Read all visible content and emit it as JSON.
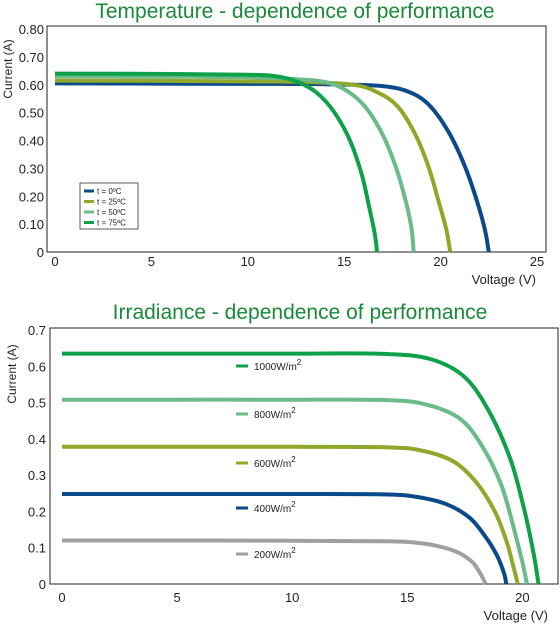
{
  "chart_data": [
    {
      "type": "line",
      "title": "Temperature - dependence of performance",
      "xlabel": "Voltage (V)",
      "ylabel": "Current (A)",
      "xlim": [
        0,
        25
      ],
      "ylim": [
        0,
        0.8
      ],
      "x_ticks": [
        "0",
        "5",
        "10",
        "15",
        "20",
        "25"
      ],
      "y_ticks": [
        "0",
        "0.10",
        "0.20",
        "0.30",
        "0.40",
        "0.50",
        "0.60",
        "0.70",
        "0.80"
      ],
      "legend_position": "bottom-left",
      "series": [
        {
          "name": "t = 0ºC",
          "color": "#0a4a8a",
          "isc": 0.605,
          "voc": 22.5,
          "knee": 0.82,
          "points": [
            [
              0,
              0.605
            ],
            [
              5,
              0.604
            ],
            [
              10,
              0.603
            ],
            [
              14,
              0.602
            ],
            [
              17,
              0.595
            ],
            [
              18.5,
              0.57
            ],
            [
              19.5,
              0.52
            ],
            [
              20.5,
              0.42
            ],
            [
              21.3,
              0.3
            ],
            [
              21.9,
              0.18
            ],
            [
              22.3,
              0.08
            ],
            [
              22.5,
              0
            ]
          ]
        },
        {
          "name": "t = 25ºC",
          "color": "#8fa82a",
          "isc": 0.615,
          "voc": 20.5,
          "knee": 0.82,
          "points": [
            [
              0,
              0.615
            ],
            [
              5,
              0.614
            ],
            [
              10,
              0.612
            ],
            [
              13,
              0.61
            ],
            [
              15.5,
              0.6
            ],
            [
              16.8,
              0.57
            ],
            [
              17.8,
              0.52
            ],
            [
              18.7,
              0.42
            ],
            [
              19.4,
              0.3
            ],
            [
              19.9,
              0.18
            ],
            [
              20.3,
              0.08
            ],
            [
              20.5,
              0
            ]
          ]
        },
        {
          "name": "t = 50ºC",
          "color": "#6aba8a",
          "isc": 0.63,
          "voc": 18.6,
          "knee": 0.82,
          "points": [
            [
              0,
              0.63
            ],
            [
              5,
              0.629
            ],
            [
              10,
              0.627
            ],
            [
              12.5,
              0.62
            ],
            [
              14,
              0.61
            ],
            [
              15.1,
              0.58
            ],
            [
              16.1,
              0.52
            ],
            [
              17,
              0.42
            ],
            [
              17.7,
              0.3
            ],
            [
              18.2,
              0.18
            ],
            [
              18.5,
              0.08
            ],
            [
              18.6,
              0
            ]
          ]
        },
        {
          "name": "t = 75ºC",
          "color": "#0fa04a",
          "isc": 0.64,
          "voc": 16.7,
          "knee": 0.82,
          "points": [
            [
              0,
              0.64
            ],
            [
              5,
              0.639
            ],
            [
              10,
              0.636
            ],
            [
              11.5,
              0.63
            ],
            [
              12.6,
              0.61
            ],
            [
              13.6,
              0.57
            ],
            [
              14.5,
              0.5
            ],
            [
              15.3,
              0.4
            ],
            [
              15.9,
              0.28
            ],
            [
              16.3,
              0.16
            ],
            [
              16.6,
              0.06
            ],
            [
              16.7,
              0
            ]
          ]
        }
      ]
    },
    {
      "type": "line",
      "title": "Irradiance - dependence of performance",
      "xlabel": "Voltage (V)",
      "ylabel": "Current (A)",
      "xlim": [
        0,
        21.2
      ],
      "ylim": [
        0,
        0.7
      ],
      "x_ticks": [
        "0",
        "5",
        "10",
        "15",
        "20"
      ],
      "y_ticks": [
        "0",
        "0.1",
        "0.2",
        "0.3",
        "0.4",
        "0.5",
        "0.6",
        "0.7"
      ],
      "legend_position": "inline-center",
      "series": [
        {
          "name": "1000W/m",
          "sup": "2",
          "color": "#0fa04a",
          "isc": 0.635,
          "voc": 20.7,
          "knee": 0.78,
          "points": [
            [
              0,
              0.635
            ],
            [
              5,
              0.635
            ],
            [
              10,
              0.635
            ],
            [
              14,
              0.634
            ],
            [
              16,
              0.62
            ],
            [
              17.5,
              0.57
            ],
            [
              18.6,
              0.47
            ],
            [
              19.5,
              0.34
            ],
            [
              20.1,
              0.2
            ],
            [
              20.5,
              0.08
            ],
            [
              20.7,
              0
            ]
          ]
        },
        {
          "name": "800W/m",
          "sup": "2",
          "color": "#6aba8a",
          "isc": 0.508,
          "voc": 20.2,
          "knee": 0.78,
          "points": [
            [
              0,
              0.508
            ],
            [
              5,
              0.508
            ],
            [
              10,
              0.508
            ],
            [
              14,
              0.507
            ],
            [
              15.8,
              0.495
            ],
            [
              17.3,
              0.455
            ],
            [
              18.3,
              0.375
            ],
            [
              19.1,
              0.27
            ],
            [
              19.6,
              0.16
            ],
            [
              20,
              0.06
            ],
            [
              20.2,
              0
            ]
          ]
        },
        {
          "name": "600W/m",
          "sup": "2",
          "color": "#8fa82a",
          "isc": 0.378,
          "voc": 19.8,
          "knee": 0.78,
          "points": [
            [
              0,
              0.378
            ],
            [
              5,
              0.378
            ],
            [
              10,
              0.378
            ],
            [
              14,
              0.377
            ],
            [
              15.6,
              0.368
            ],
            [
              17,
              0.338
            ],
            [
              18,
              0.28
            ],
            [
              18.8,
              0.2
            ],
            [
              19.3,
              0.12
            ],
            [
              19.6,
              0.05
            ],
            [
              19.8,
              0
            ]
          ]
        },
        {
          "name": "400W/m",
          "sup": "2",
          "color": "#0a4a8a",
          "isc": 0.248,
          "voc": 19.3,
          "knee": 0.78,
          "points": [
            [
              0,
              0.248
            ],
            [
              5,
              0.248
            ],
            [
              10,
              0.248
            ],
            [
              14,
              0.247
            ],
            [
              15.4,
              0.24
            ],
            [
              16.7,
              0.22
            ],
            [
              17.7,
              0.183
            ],
            [
              18.4,
              0.13
            ],
            [
              18.9,
              0.078
            ],
            [
              19.2,
              0.03
            ],
            [
              19.3,
              0
            ]
          ]
        },
        {
          "name": "200W/m",
          "sup": "2",
          "color": "#a0a0a0",
          "isc": 0.12,
          "voc": 18.4,
          "knee": 0.78,
          "points": [
            [
              0,
              0.12
            ],
            [
              5,
              0.12
            ],
            [
              10,
              0.119
            ],
            [
              14,
              0.118
            ],
            [
              15.2,
              0.115
            ],
            [
              16.3,
              0.105
            ],
            [
              17.2,
              0.087
            ],
            [
              17.8,
              0.062
            ],
            [
              18.1,
              0.037
            ],
            [
              18.3,
              0.014
            ],
            [
              18.4,
              0
            ]
          ]
        }
      ]
    }
  ]
}
